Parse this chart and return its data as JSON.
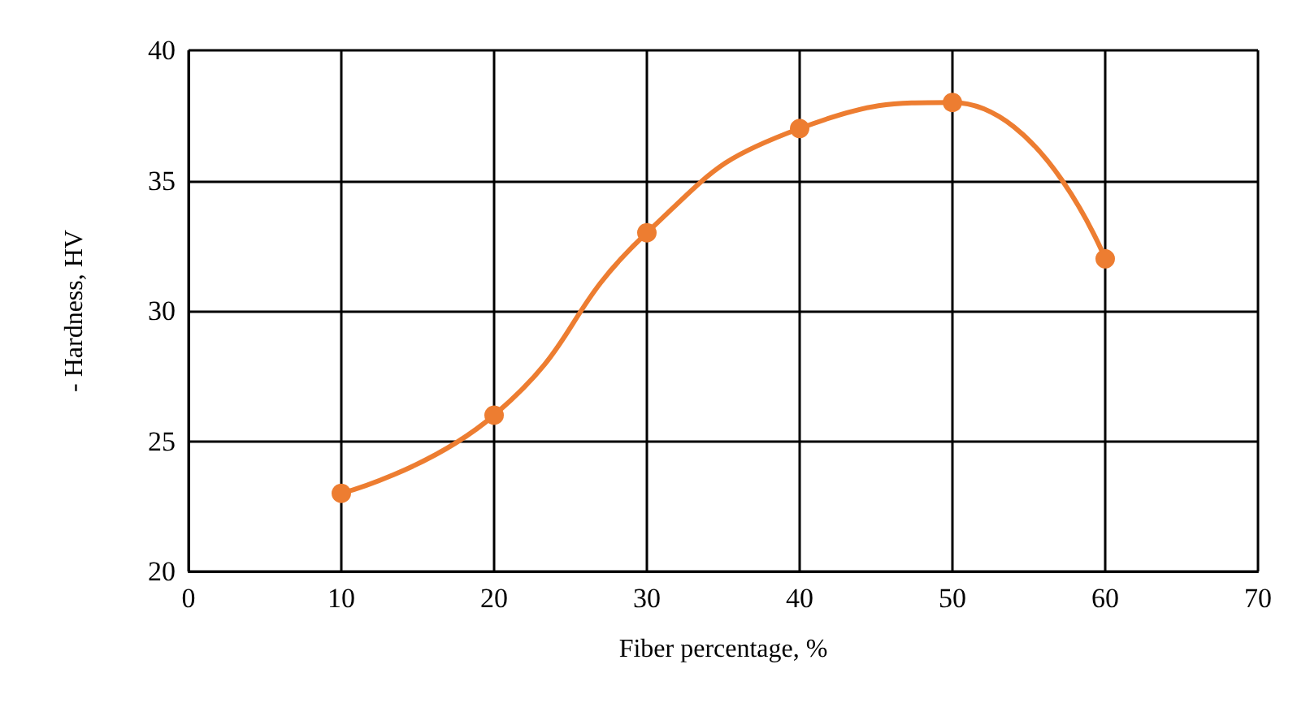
{
  "chart_data": {
    "type": "line",
    "xlabel": "Fiber percentage, %",
    "ylabel": "- Hardness, HV",
    "x": [
      10,
      20,
      30,
      40,
      50,
      60
    ],
    "series": [
      {
        "color": "#ed7d31",
        "values": [
          23,
          26,
          33,
          37,
          38,
          32
        ]
      }
    ],
    "xlim": [
      0,
      70
    ],
    "xticks": [
      0,
      10,
      20,
      30,
      40,
      50,
      60,
      70
    ],
    "ylim": [
      20,
      40
    ],
    "yticks": [
      20,
      25,
      30,
      35,
      40
    ],
    "grid": true,
    "marker": "circle",
    "line_style": "solid"
  }
}
